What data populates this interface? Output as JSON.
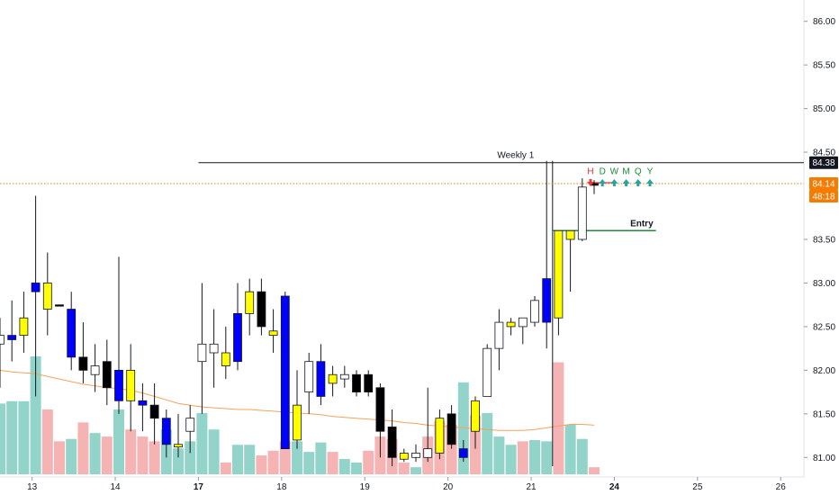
{
  "chart_data": {
    "type": "candlestick",
    "ylim": [
      80.9,
      86.1
    ],
    "y_ticks": [
      "86.00",
      "85.50",
      "85.00",
      "84.50",
      "83.50",
      "83.00",
      "82.50",
      "82.00",
      "81.50",
      "81.00"
    ],
    "x_ticks": [
      {
        "label": "13",
        "bold": false,
        "slot": 2.7
      },
      {
        "label": "14",
        "bold": false,
        "slot": 9.7
      },
      {
        "label": "17",
        "bold": true,
        "slot": 16.7
      },
      {
        "label": "18",
        "bold": false,
        "slot": 23.7
      },
      {
        "label": "19",
        "bold": false,
        "slot": 30.7
      },
      {
        "label": "20",
        "bold": false,
        "slot": 37.7
      },
      {
        "label": "21",
        "bold": false,
        "slot": 44.7
      },
      {
        "label": "24",
        "bold": true,
        "slot": 51.7
      },
      {
        "label": "25",
        "bold": false,
        "slot": 58.7
      },
      {
        "label": "26",
        "bold": false,
        "slot": 65.7
      }
    ],
    "candles": [
      {
        "o": 82.3,
        "h": 82.6,
        "l": 81.8,
        "c": 82.4,
        "col": "#ffffff"
      },
      {
        "o": 82.4,
        "h": 82.8,
        "l": 82.1,
        "c": 82.35,
        "col": "#0000ff"
      },
      {
        "o": 82.4,
        "h": 82.9,
        "l": 82.2,
        "c": 82.6,
        "col": "#ffff00"
      },
      {
        "o": 83.0,
        "h": 84.0,
        "l": 81.7,
        "c": 82.9,
        "col": "#0000ff"
      },
      {
        "o": 82.7,
        "h": 83.35,
        "l": 82.4,
        "c": 83.0,
        "col": "#ffff00"
      },
      {
        "o": 82.75,
        "h": 82.75,
        "l": 82.75,
        "c": 82.75,
        "col": "#000000"
      },
      {
        "o": 82.7,
        "h": 82.9,
        "l": 82.0,
        "c": 82.15,
        "col": "#0000ff"
      },
      {
        "o": 82.15,
        "h": 82.55,
        "l": 81.85,
        "c": 82.0,
        "col": "#000000"
      },
      {
        "o": 82.05,
        "h": 82.3,
        "l": 81.75,
        "c": 81.95,
        "col": "#ffffff"
      },
      {
        "o": 82.1,
        "h": 82.35,
        "l": 81.6,
        "c": 81.8,
        "col": "#000000"
      },
      {
        "o": 82.0,
        "h": 83.3,
        "l": 81.5,
        "c": 81.65,
        "col": "#0000ff"
      },
      {
        "o": 81.65,
        "h": 82.3,
        "l": 81.3,
        "c": 82.0,
        "col": "#ffff00"
      },
      {
        "o": 81.65,
        "h": 81.85,
        "l": 81.3,
        "c": 81.6,
        "col": "#0000ff"
      },
      {
        "o": 81.6,
        "h": 81.85,
        "l": 81.15,
        "c": 81.45,
        "col": "#000000"
      },
      {
        "o": 81.45,
        "h": 81.55,
        "l": 81.0,
        "c": 81.15,
        "col": "#0000ff"
      },
      {
        "o": 81.15,
        "h": 81.5,
        "l": 81.0,
        "c": 81.12,
        "col": "#ffff00"
      },
      {
        "o": 81.3,
        "h": 81.6,
        "l": 81.05,
        "c": 81.45,
        "col": "#ffffff"
      },
      {
        "o": 82.1,
        "h": 83.0,
        "l": 81.5,
        "c": 82.3,
        "col": "#ffffff"
      },
      {
        "o": 82.2,
        "h": 82.7,
        "l": 81.8,
        "c": 82.3,
        "col": "#ffffff"
      },
      {
        "o": 82.2,
        "h": 82.5,
        "l": 81.9,
        "c": 82.05,
        "col": "#ffff00"
      },
      {
        "o": 82.65,
        "h": 83.0,
        "l": 82.0,
        "c": 82.1,
        "col": "#0000ff"
      },
      {
        "o": 82.65,
        "h": 83.05,
        "l": 82.4,
        "c": 82.9,
        "col": "#ffff00"
      },
      {
        "o": 82.9,
        "h": 83.05,
        "l": 82.4,
        "c": 82.5,
        "col": "#000000"
      },
      {
        "o": 82.4,
        "h": 82.7,
        "l": 82.2,
        "c": 82.45,
        "col": "#ffff00"
      },
      {
        "o": 82.85,
        "h": 82.9,
        "l": 81.1,
        "c": 81.1,
        "col": "#0000ff"
      },
      {
        "o": 81.6,
        "h": 82.0,
        "l": 81.1,
        "c": 81.2,
        "col": "#ffff00"
      },
      {
        "o": 81.75,
        "h": 82.2,
        "l": 81.5,
        "c": 82.1,
        "col": "#ffffff"
      },
      {
        "o": 82.1,
        "h": 82.3,
        "l": 81.6,
        "c": 81.7,
        "col": "#0000ff"
      },
      {
        "o": 81.85,
        "h": 82.05,
        "l": 81.7,
        "c": 81.95,
        "col": "#ffff00"
      },
      {
        "o": 81.9,
        "h": 82.05,
        "l": 81.8,
        "c": 81.95,
        "col": "#ffffff"
      },
      {
        "o": 81.95,
        "h": 82.0,
        "l": 81.7,
        "c": 81.75,
        "col": "#000000"
      },
      {
        "o": 81.95,
        "h": 82.0,
        "l": 81.7,
        "c": 81.75,
        "col": "#000000"
      },
      {
        "o": 81.8,
        "h": 81.85,
        "l": 81.0,
        "c": 81.3,
        "col": "#000000"
      },
      {
        "o": 81.35,
        "h": 81.55,
        "l": 80.9,
        "c": 81.0,
        "col": "#000000"
      },
      {
        "o": 81.05,
        "h": 81.1,
        "l": 80.95,
        "c": 80.98,
        "col": "#ffff00"
      },
      {
        "o": 81.05,
        "h": 81.15,
        "l": 80.95,
        "c": 81.0,
        "col": "#ffffff"
      },
      {
        "o": 81.1,
        "h": 81.8,
        "l": 80.95,
        "c": 81.0,
        "col": "#ffffff"
      },
      {
        "o": 81.05,
        "h": 81.55,
        "l": 80.98,
        "c": 81.45,
        "col": "#ffff00"
      },
      {
        "o": 81.5,
        "h": 81.6,
        "l": 81.1,
        "c": 81.15,
        "col": "#000000"
      },
      {
        "o": 81.1,
        "h": 81.2,
        "l": 80.95,
        "c": 81.0,
        "col": "#0000ff"
      },
      {
        "o": 81.3,
        "h": 81.7,
        "l": 81.1,
        "c": 81.65,
        "col": "#ffff00"
      },
      {
        "o": 81.7,
        "h": 82.3,
        "l": 81.7,
        "c": 82.25,
        "col": "#ffffff"
      },
      {
        "o": 82.25,
        "h": 82.7,
        "l": 82.0,
        "c": 82.55,
        "col": "#ffffff"
      },
      {
        "o": 82.5,
        "h": 82.6,
        "l": 82.4,
        "c": 82.55,
        "col": "#ffff00"
      },
      {
        "o": 82.5,
        "h": 82.6,
        "l": 82.3,
        "c": 82.6,
        "col": "#ffffff"
      },
      {
        "o": 82.55,
        "h": 82.85,
        "l": 82.5,
        "c": 82.8,
        "col": "#ffffff"
      },
      {
        "o": 82.55,
        "h": 84.4,
        "l": 82.25,
        "c": 83.05,
        "col": "#0000ff"
      },
      {
        "o": 82.6,
        "h": 83.6,
        "l": 82.4,
        "c": 83.6,
        "col": "#ffff00"
      },
      {
        "o": 83.6,
        "h": 83.6,
        "l": 82.9,
        "c": 83.5,
        "col": "#ffff00"
      },
      {
        "o": 83.5,
        "h": 84.2,
        "l": 83.48,
        "c": 84.1,
        "col": "#ffffff"
      },
      {
        "o": 84.12,
        "h": 84.18,
        "l": 84.02,
        "c": 84.14,
        "col": "#000000"
      }
    ],
    "volume": [
      {
        "v": 0.6,
        "col": "#7fcdbf"
      },
      {
        "v": 0.62,
        "col": "#7fcdbf"
      },
      {
        "v": 0.62,
        "col": "#7fcdbf"
      },
      {
        "v": 1.0,
        "col": "#7fcdbf"
      },
      {
        "v": 0.55,
        "col": "#f5a6a6"
      },
      {
        "v": 0.28,
        "col": "#f5a6a6"
      },
      {
        "v": 0.3,
        "col": "#7fcdbf"
      },
      {
        "v": 0.44,
        "col": "#f5a6a6"
      },
      {
        "v": 0.35,
        "col": "#7fcdbf"
      },
      {
        "v": 0.32,
        "col": "#f5a6a6"
      },
      {
        "v": 0.55,
        "col": "#7fcdbf"
      },
      {
        "v": 0.38,
        "col": "#f5a6a6"
      },
      {
        "v": 0.32,
        "col": "#f5a6a6"
      },
      {
        "v": 0.28,
        "col": "#f5a6a6"
      },
      {
        "v": 0.38,
        "col": "#7fcdbf"
      },
      {
        "v": 0.22,
        "col": "#7fcdbf"
      },
      {
        "v": 0.28,
        "col": "#7fcdbf"
      },
      {
        "v": 0.52,
        "col": "#7fcdbf"
      },
      {
        "v": 0.38,
        "col": "#7fcdbf"
      },
      {
        "v": 0.1,
        "col": "#f5a6a6"
      },
      {
        "v": 0.25,
        "col": "#7fcdbf"
      },
      {
        "v": 0.25,
        "col": "#7fcdbf"
      },
      {
        "v": 0.16,
        "col": "#f5a6a6"
      },
      {
        "v": 0.2,
        "col": "#f5a6a6"
      },
      {
        "v": 0.28,
        "col": "#f5a6a6"
      },
      {
        "v": 0.28,
        "col": "#7fcdbf"
      },
      {
        "v": 0.19,
        "col": "#7fcdbf"
      },
      {
        "v": 0.27,
        "col": "#7fcdbf"
      },
      {
        "v": 0.19,
        "col": "#f5a6a6"
      },
      {
        "v": 0.13,
        "col": "#7fcdbf"
      },
      {
        "v": 0.1,
        "col": "#7fcdbf"
      },
      {
        "v": 0.2,
        "col": "#f5a6a6"
      },
      {
        "v": 0.32,
        "col": "#f5a6a6"
      },
      {
        "v": 0.3,
        "col": "#f5a6a6"
      },
      {
        "v": 0.1,
        "col": "#f5a6a6"
      },
      {
        "v": 0.06,
        "col": "#7fcdbf"
      },
      {
        "v": 0.32,
        "col": "#f5a6a6"
      },
      {
        "v": 0.45,
        "col": "#f5a6a6"
      },
      {
        "v": 0.42,
        "col": "#f5a6a6"
      },
      {
        "v": 0.78,
        "col": "#7fcdbf"
      },
      {
        "v": 0.5,
        "col": "#f5a6a6"
      },
      {
        "v": 0.52,
        "col": "#7fcdbf"
      },
      {
        "v": 0.32,
        "col": "#7fcdbf"
      },
      {
        "v": 0.25,
        "col": "#7fcdbf"
      },
      {
        "v": 0.28,
        "col": "#f5a6a6"
      },
      {
        "v": 0.29,
        "col": "#7fcdbf"
      },
      {
        "v": 0.28,
        "col": "#7fcdbf"
      },
      {
        "v": 0.95,
        "col": "#f5a6a6"
      },
      {
        "v": 0.42,
        "col": "#7fcdbf"
      },
      {
        "v": 0.3,
        "col": "#7fcdbf"
      },
      {
        "v": 0.06,
        "col": "#f5a6a6"
      }
    ],
    "moving_average": [
      82.0,
      81.98,
      81.97,
      81.96,
      81.93,
      81.9,
      81.87,
      81.84,
      81.82,
      81.8,
      81.79,
      81.77,
      81.74,
      81.7,
      81.66,
      81.62,
      81.6,
      81.58,
      81.57,
      81.56,
      81.55,
      81.55,
      81.54,
      81.53,
      81.52,
      81.51,
      81.5,
      81.49,
      81.47,
      81.46,
      81.45,
      81.44,
      81.43,
      81.42,
      81.4,
      81.39,
      81.37,
      81.36,
      81.35,
      81.34,
      81.33,
      81.32,
      81.31,
      81.31,
      81.31,
      81.32,
      81.34,
      81.36,
      81.38,
      81.38,
      81.37
    ],
    "levels": [
      {
        "name": "weekly",
        "label": "Weekly 1",
        "price": 84.38,
        "badge": "84.38",
        "color": "#131722",
        "style": "solid",
        "from_slot": 16.7
      },
      {
        "name": "current",
        "label": "",
        "price": 84.14,
        "badge": "84.14",
        "color": "#f57c00",
        "style": "dotted",
        "from_slot": -1
      },
      {
        "name": "entry",
        "label": "Entry",
        "price": 83.6,
        "color": "#1b8a3a",
        "style": "solid",
        "from_slot": 46.5,
        "to_slot": 55.2
      }
    ],
    "countdown": "48:18",
    "weekly_marker": {
      "slot": 46.5,
      "from_price": 84.4,
      "to_price": 80.9
    },
    "red_stop": {
      "price": 84.15,
      "from_slot": 49.5,
      "to_slot": 51.8
    },
    "timeframes": {
      "labels": [
        "H",
        "D",
        "W",
        "M",
        "Q",
        "Y"
      ],
      "directions": [
        "down",
        "up",
        "up",
        "up",
        "up",
        "up"
      ],
      "label_colors": [
        "#d32f2f",
        "#1b8a3a",
        "#1b8a3a",
        "#1b8a3a",
        "#1b8a3a",
        "#1b8a3a"
      ]
    }
  }
}
